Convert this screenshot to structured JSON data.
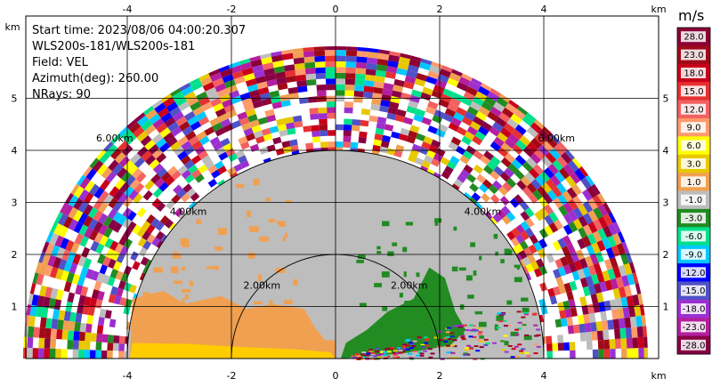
{
  "info": {
    "start_time": "Start time: 2023/08/06 04:00:20.307",
    "station": "WLS200s-181/WLS200s-181",
    "field": "Field: VEL",
    "azimuth": "Azimuth(deg): 260.00",
    "nrays": "NRays: 90"
  },
  "colorbar": {
    "unit": "m/s",
    "labels": [
      "28.0",
      "23.0",
      "18.0",
      "15.0",
      "12.0",
      "9.0",
      "6.0",
      "3.0",
      "1.0",
      "-1.0",
      "-3.0",
      "-6.0",
      "-9.0",
      "-12.0",
      "-15.0",
      "-18.0",
      "-23.0",
      "-28.0"
    ],
    "colors": [
      "#8b0036",
      "#a00a18",
      "#c8001a",
      "#e63030",
      "#f26060",
      "#ff9a6a",
      "#ffff00",
      "#e8c800",
      "#f0a050",
      "#bdbdbd",
      "#228b22",
      "#00e08a",
      "#00c8ff",
      "#0000ff",
      "#5050c8",
      "#9b30d0",
      "#b41ea0",
      "#880044"
    ]
  },
  "chart_data": {
    "type": "heatmap",
    "projection": "ppi-half-disc",
    "xlabel": "km",
    "ylabel": "km",
    "xlim": [
      -6,
      6
    ],
    "ylim": [
      0,
      6
    ],
    "xticks": [
      -4,
      -2,
      0,
      2,
      4
    ],
    "yticks": [
      1,
      2,
      3,
      4,
      5
    ],
    "range_rings_km": [
      2,
      4,
      6
    ],
    "ring_labels": [
      "2.00km",
      "4.00km",
      "6.00km"
    ],
    "grid": true,
    "regions": [
      {
        "range_km": [
          0.0,
          4.0
        ],
        "sector": "right-lower",
        "value": -1.5,
        "color": "#228b22"
      },
      {
        "range_km": [
          0.0,
          4.0
        ],
        "sector": "left-lower",
        "value": 2.0,
        "color": "#f0a050"
      },
      {
        "range_km": [
          0.0,
          4.0
        ],
        "sector": "left-ground",
        "value": 5.0,
        "color": "#ffcc00"
      },
      {
        "range_km": [
          0.0,
          4.0
        ],
        "sector": "upper",
        "value": 0.0,
        "color": "#bdbdbd"
      },
      {
        "range_km": [
          4.0,
          6.0
        ],
        "sector": "all",
        "value": "noise",
        "color": "mixed"
      }
    ]
  }
}
